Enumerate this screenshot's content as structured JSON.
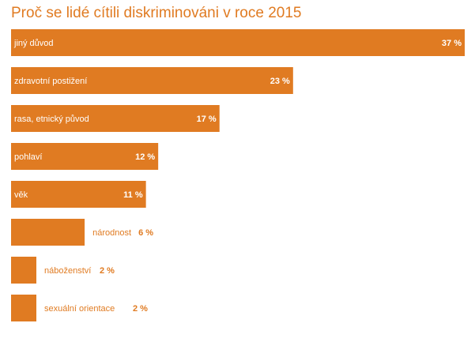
{
  "chart_data": {
    "type": "bar",
    "orientation": "horizontal",
    "title": "Proč se lidé cítili diskriminováni v roce 2015",
    "categories": [
      "jiný důvod",
      "zdravotní postižení",
      "rasa, etnický původ",
      "pohlaví",
      "věk",
      "národnost",
      "náboženství",
      "sexuální orientace"
    ],
    "values": [
      37,
      23,
      17,
      12,
      11,
      6,
      2,
      2
    ],
    "value_labels": [
      "37 %",
      "23 %",
      "17 %",
      "12 %",
      "11 %",
      "6 %",
      "2 %",
      "2 %"
    ],
    "xlabel": "",
    "ylabel": "",
    "xlim": [
      0,
      37
    ],
    "grid": false,
    "legend": "none",
    "colors": {
      "bar": "#e07b22",
      "title": "#e07b22",
      "label_inside": "#ffffff",
      "label_outside": "#e07b22"
    }
  }
}
